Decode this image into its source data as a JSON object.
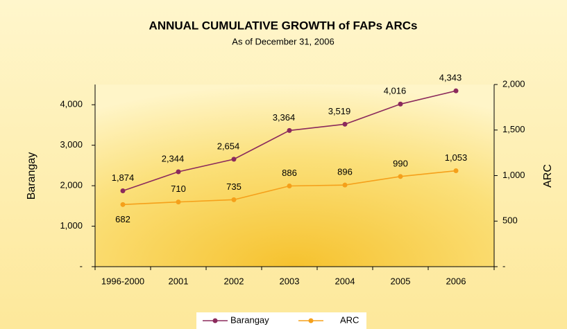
{
  "chart_data": {
    "type": "line",
    "title": "ANNUAL CUMULATIVE GROWTH of FAPs ARCs",
    "subtitle": "As of December 31, 2006",
    "y_label": "Barangay",
    "y2_label": "ARC",
    "categories": [
      "1996-2000",
      "2001",
      "2002",
      "2003",
      "2004",
      "2005",
      "2006"
    ],
    "series": [
      {
        "name": "Barangay",
        "color": "#8b2a5c",
        "values": [
          1874,
          2344,
          2654,
          3364,
          3519,
          4016,
          4343
        ],
        "value_labels": [
          "1,874",
          "2,344",
          "2,654",
          "3,364",
          "3,519",
          "4,016",
          "4,343"
        ]
      },
      {
        "name": "ARC",
        "color": "#f5a01a",
        "axis": "y2",
        "values": [
          682,
          710,
          735,
          886,
          896,
          990,
          1053
        ],
        "value_labels": [
          "682",
          "710",
          "735",
          "886",
          "896",
          "990",
          "1,053"
        ]
      }
    ],
    "ylim": [
      0,
      4500
    ],
    "yticks": [
      {
        "value": 0,
        "label": "-"
      },
      {
        "value": 1000,
        "label": "1,000"
      },
      {
        "value": 2000,
        "label": "2,000"
      },
      {
        "value": 3000,
        "label": "3,000"
      },
      {
        "value": 4000,
        "label": "4,000"
      }
    ],
    "y2lim": [
      0,
      2000
    ],
    "y2ticks": [
      {
        "value": 0,
        "label": "-"
      },
      500,
      {
        "value": 1000,
        "label": "1,000"
      },
      {
        "value": 1500,
        "label": "1,500"
      },
      {
        "value": 2000,
        "label": "2,000"
      }
    ],
    "legend": "bottom"
  }
}
